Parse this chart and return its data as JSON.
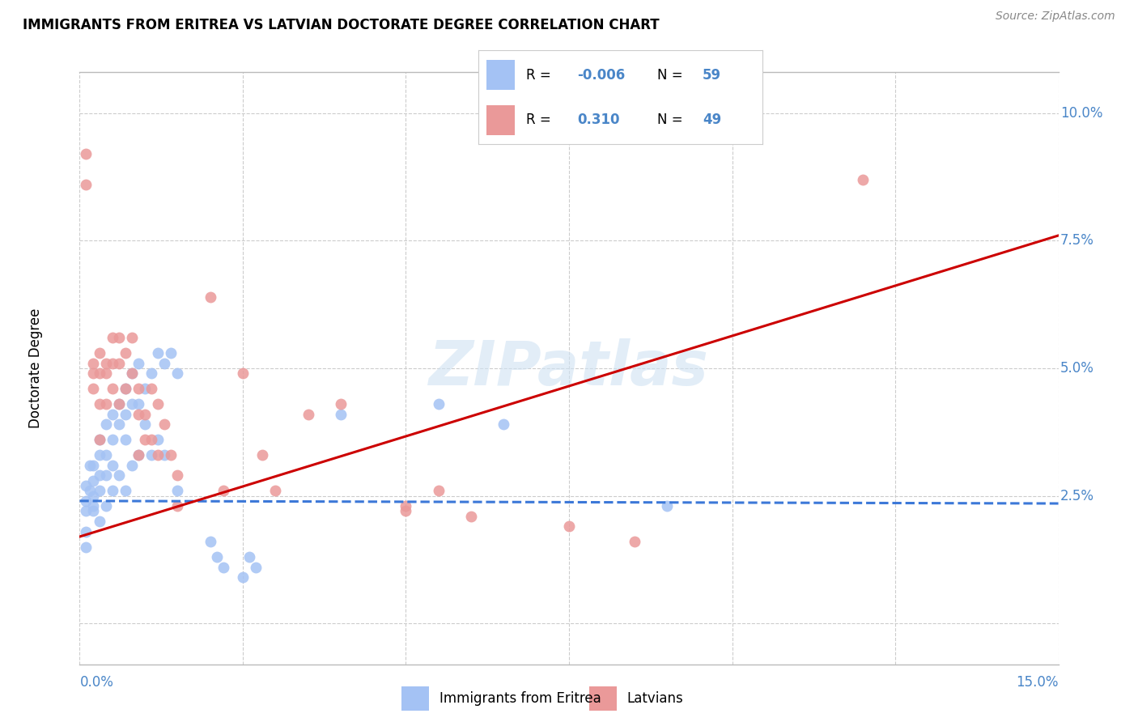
{
  "title": "IMMIGRANTS FROM ERITREA VS LATVIAN DOCTORATE DEGREE CORRELATION CHART",
  "source": "Source: ZipAtlas.com",
  "ylabel": "Doctorate Degree",
  "xlim": [
    0.0,
    0.15
  ],
  "ylim": [
    -0.008,
    0.108
  ],
  "watermark": "ZIPatlas",
  "blue_color": "#a4c2f4",
  "pink_color": "#ea9999",
  "blue_line_color": "#3c78d8",
  "pink_line_color": "#cc0000",
  "background_color": "#ffffff",
  "grid_color": "#cccccc",
  "blue_scatter_x": [
    0.001,
    0.001,
    0.001,
    0.001,
    0.0015,
    0.0015,
    0.002,
    0.002,
    0.002,
    0.002,
    0.003,
    0.003,
    0.003,
    0.003,
    0.003,
    0.004,
    0.004,
    0.004,
    0.004,
    0.005,
    0.005,
    0.005,
    0.005,
    0.006,
    0.006,
    0.006,
    0.007,
    0.007,
    0.007,
    0.007,
    0.008,
    0.008,
    0.008,
    0.009,
    0.009,
    0.009,
    0.01,
    0.01,
    0.011,
    0.011,
    0.012,
    0.012,
    0.013,
    0.013,
    0.014,
    0.015,
    0.015,
    0.02,
    0.021,
    0.022,
    0.025,
    0.026,
    0.027,
    0.04,
    0.055,
    0.065,
    0.09,
    0.001,
    0.002
  ],
  "blue_scatter_y": [
    0.027,
    0.024,
    0.022,
    0.018,
    0.031,
    0.026,
    0.031,
    0.028,
    0.025,
    0.022,
    0.036,
    0.033,
    0.029,
    0.026,
    0.02,
    0.039,
    0.033,
    0.029,
    0.023,
    0.041,
    0.036,
    0.031,
    0.026,
    0.043,
    0.039,
    0.029,
    0.046,
    0.041,
    0.036,
    0.026,
    0.049,
    0.043,
    0.031,
    0.051,
    0.043,
    0.033,
    0.046,
    0.039,
    0.049,
    0.033,
    0.053,
    0.036,
    0.051,
    0.033,
    0.053,
    0.049,
    0.026,
    0.016,
    0.013,
    0.011,
    0.009,
    0.013,
    0.011,
    0.041,
    0.043,
    0.039,
    0.023,
    0.015,
    0.023
  ],
  "pink_scatter_x": [
    0.001,
    0.001,
    0.002,
    0.002,
    0.002,
    0.003,
    0.003,
    0.003,
    0.003,
    0.004,
    0.004,
    0.004,
    0.005,
    0.005,
    0.005,
    0.006,
    0.006,
    0.006,
    0.007,
    0.007,
    0.008,
    0.008,
    0.009,
    0.009,
    0.009,
    0.01,
    0.01,
    0.011,
    0.011,
    0.012,
    0.012,
    0.013,
    0.014,
    0.015,
    0.015,
    0.02,
    0.022,
    0.025,
    0.028,
    0.03,
    0.035,
    0.04,
    0.05,
    0.055,
    0.06,
    0.075,
    0.085,
    0.12,
    0.05
  ],
  "pink_scatter_y": [
    0.092,
    0.086,
    0.051,
    0.049,
    0.046,
    0.053,
    0.049,
    0.043,
    0.036,
    0.051,
    0.049,
    0.043,
    0.056,
    0.051,
    0.046,
    0.056,
    0.051,
    0.043,
    0.053,
    0.046,
    0.056,
    0.049,
    0.046,
    0.041,
    0.033,
    0.041,
    0.036,
    0.046,
    0.036,
    0.043,
    0.033,
    0.039,
    0.033,
    0.029,
    0.023,
    0.064,
    0.026,
    0.049,
    0.033,
    0.026,
    0.041,
    0.043,
    0.023,
    0.026,
    0.021,
    0.019,
    0.016,
    0.087,
    0.022
  ],
  "blue_trend_x": [
    0.0,
    0.15
  ],
  "blue_trend_y": [
    0.024,
    0.0235
  ],
  "pink_trend_x": [
    0.0,
    0.15
  ],
  "pink_trend_y": [
    0.017,
    0.076
  ]
}
